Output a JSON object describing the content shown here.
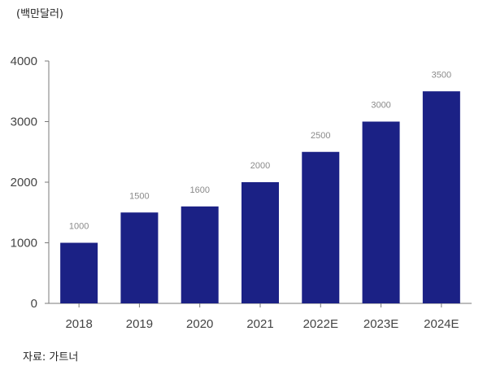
{
  "header": {
    "unit_label": "(백만달러)"
  },
  "footer": {
    "source_label": "자료: 가트너"
  },
  "chart_data": {
    "type": "bar",
    "categories": [
      "2018",
      "2019",
      "2020",
      "2021",
      "2022E",
      "2023E",
      "2024E"
    ],
    "values": [
      1000,
      1500,
      1600,
      2000,
      2500,
      3000,
      3500
    ],
    "data_labels": [
      "1000",
      "1500",
      "1600",
      "2000",
      "2500",
      "3000",
      "3500"
    ],
    "yticks": [
      0,
      1000,
      2000,
      3000,
      4000
    ],
    "ylim": [
      0,
      4000
    ],
    "title": "",
    "xlabel": "",
    "ylabel": "",
    "grid": false,
    "bar_color": "#1b2185"
  }
}
